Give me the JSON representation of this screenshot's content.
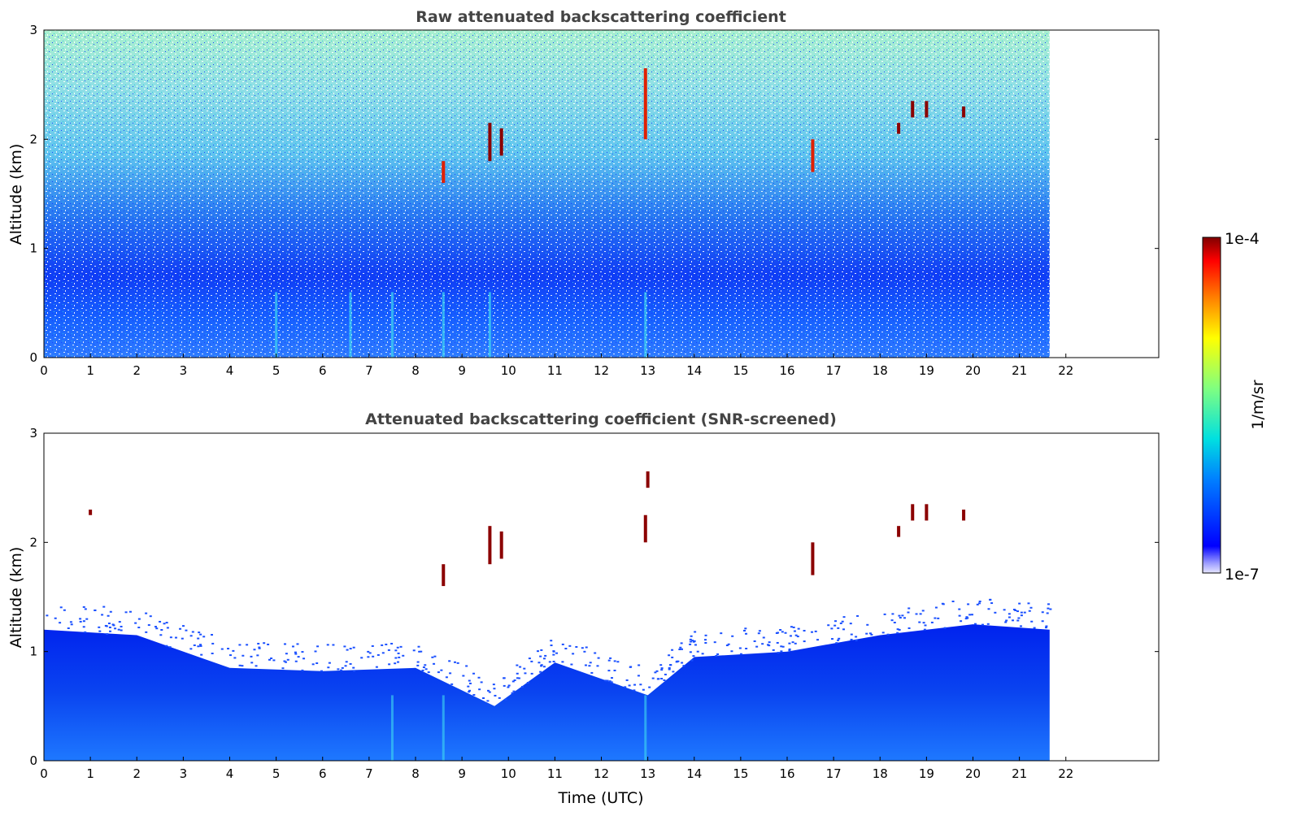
{
  "chart_data": [
    {
      "type": "heatmap",
      "title": "Raw attenuated backscattering coefficient",
      "xlabel": "",
      "ylabel": "Altitude (km)",
      "xlim": [
        0,
        24
      ],
      "ylim": [
        0,
        3
      ],
      "data_end_hour": 21.65,
      "xticks": [
        "0",
        "1",
        "2",
        "3",
        "4",
        "5",
        "6",
        "7",
        "8",
        "9",
        "10",
        "11",
        "12",
        "13",
        "14",
        "15",
        "16",
        "17",
        "18",
        "19",
        "20",
        "21",
        "22"
      ],
      "yticks": [
        "0",
        "1",
        "2",
        "3"
      ],
      "screened": false,
      "signal_layers": [
        {
          "alt_from_km": 0.0,
          "alt_to_km": 0.6,
          "level": "high"
        },
        {
          "alt_from_km": 0.6,
          "alt_to_km": 1.5,
          "level": "medium-noisy"
        },
        {
          "alt_from_km": 1.5,
          "alt_to_km": 3.0,
          "level": "noise"
        }
      ],
      "cloud_features": [
        {
          "time_h": 8.6,
          "alt_from_km": 1.6,
          "alt_to_km": 1.8,
          "intensity": "high"
        },
        {
          "time_h": 9.6,
          "alt_from_km": 1.8,
          "alt_to_km": 2.15,
          "intensity": "very-high"
        },
        {
          "time_h": 9.85,
          "alt_from_km": 1.85,
          "alt_to_km": 2.1,
          "intensity": "very-high"
        },
        {
          "time_h": 12.95,
          "alt_from_km": 2.0,
          "alt_to_km": 2.65,
          "intensity": "high"
        },
        {
          "time_h": 16.55,
          "alt_from_km": 1.7,
          "alt_to_km": 2.0,
          "intensity": "high"
        },
        {
          "time_h": 18.4,
          "alt_from_km": 2.05,
          "alt_to_km": 2.15,
          "intensity": "very-high"
        },
        {
          "time_h": 18.7,
          "alt_from_km": 2.2,
          "alt_to_km": 2.35,
          "intensity": "very-high"
        },
        {
          "time_h": 19.0,
          "alt_from_km": 2.2,
          "alt_to_km": 2.35,
          "intensity": "very-high"
        },
        {
          "time_h": 19.8,
          "alt_from_km": 2.2,
          "alt_to_km": 2.3,
          "intensity": "very-high"
        }
      ]
    },
    {
      "type": "heatmap",
      "title": "Attenuated backscattering coefficient (SNR-screened)",
      "xlabel": "Time (UTC)",
      "ylabel": "Altitude (km)",
      "xlim": [
        0,
        24
      ],
      "ylim": [
        0,
        3
      ],
      "data_end_hour": 21.65,
      "xticks": [
        "0",
        "1",
        "2",
        "3",
        "4",
        "5",
        "6",
        "7",
        "8",
        "9",
        "10",
        "11",
        "12",
        "13",
        "14",
        "15",
        "16",
        "17",
        "18",
        "19",
        "20",
        "21",
        "22"
      ],
      "yticks": [
        "0",
        "1",
        "2",
        "3"
      ],
      "screened": true,
      "boundary_layer_top_km": [
        {
          "time_h": 0,
          "alt_km": 1.2
        },
        {
          "time_h": 2,
          "alt_km": 1.15
        },
        {
          "time_h": 4,
          "alt_km": 0.85
        },
        {
          "time_h": 6,
          "alt_km": 0.82
        },
        {
          "time_h": 8,
          "alt_km": 0.85
        },
        {
          "time_h": 9.7,
          "alt_km": 0.5
        },
        {
          "time_h": 11,
          "alt_km": 0.9
        },
        {
          "time_h": 13,
          "alt_km": 0.6
        },
        {
          "time_h": 14,
          "alt_km": 0.95
        },
        {
          "time_h": 16,
          "alt_km": 1.0
        },
        {
          "time_h": 18,
          "alt_km": 1.15
        },
        {
          "time_h": 20,
          "alt_km": 1.25
        },
        {
          "time_h": 21.65,
          "alt_km": 1.2
        }
      ],
      "cloud_features": [
        {
          "time_h": 1.0,
          "alt_from_km": 2.25,
          "alt_to_km": 2.3,
          "intensity": "very-high"
        },
        {
          "time_h": 8.6,
          "alt_from_km": 1.6,
          "alt_to_km": 1.8,
          "intensity": "very-high"
        },
        {
          "time_h": 9.6,
          "alt_from_km": 1.8,
          "alt_to_km": 2.15,
          "intensity": "very-high"
        },
        {
          "time_h": 9.85,
          "alt_from_km": 1.85,
          "alt_to_km": 2.1,
          "intensity": "very-high"
        },
        {
          "time_h": 12.95,
          "alt_from_km": 2.0,
          "alt_to_km": 2.25,
          "intensity": "very-high"
        },
        {
          "time_h": 13.0,
          "alt_from_km": 2.5,
          "alt_to_km": 2.65,
          "intensity": "very-high"
        },
        {
          "time_h": 16.55,
          "alt_from_km": 1.7,
          "alt_to_km": 2.0,
          "intensity": "very-high"
        },
        {
          "time_h": 18.4,
          "alt_from_km": 2.05,
          "alt_to_km": 2.15,
          "intensity": "very-high"
        },
        {
          "time_h": 18.7,
          "alt_from_km": 2.2,
          "alt_to_km": 2.35,
          "intensity": "very-high"
        },
        {
          "time_h": 19.0,
          "alt_from_km": 2.2,
          "alt_to_km": 2.35,
          "intensity": "very-high"
        },
        {
          "time_h": 19.8,
          "alt_from_km": 2.2,
          "alt_to_km": 2.3,
          "intensity": "very-high"
        }
      ]
    }
  ],
  "colorbar": {
    "min_label": "1e-7",
    "max_label": "1e-4",
    "unit_label": "1/m/sr",
    "scale": "log",
    "colormap": "jet"
  }
}
